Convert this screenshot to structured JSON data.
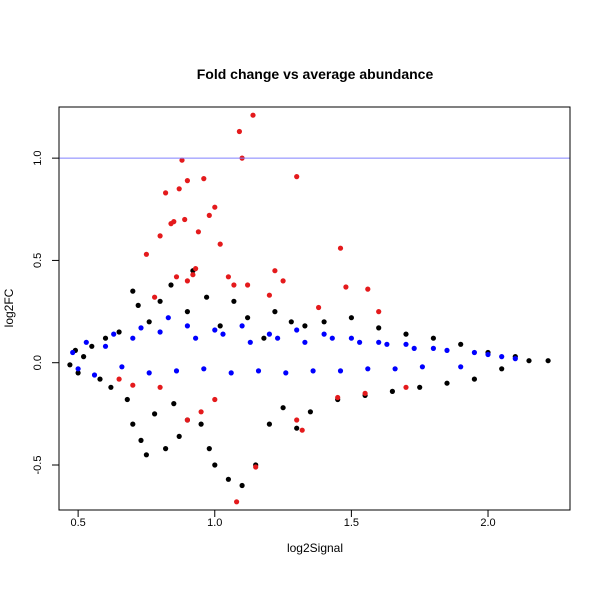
{
  "chart_data": {
    "type": "scatter",
    "title": "Fold change vs average abundance",
    "xlabel": "log2Signal",
    "ylabel": "log2FC",
    "xlim": [
      0.43,
      2.3
    ],
    "ylim": [
      -0.72,
      1.25
    ],
    "x_ticks": [
      0.5,
      1.0,
      1.5,
      2.0
    ],
    "x_tick_labels": [
      "0.5",
      "1.0",
      "1.5",
      "2.0"
    ],
    "y_ticks": [
      -0.5,
      0.0,
      0.5,
      1.0
    ],
    "y_tick_labels": [
      "-0.5",
      "0.0",
      "0.5",
      "1.0"
    ],
    "grid": false,
    "legend": "none",
    "reference_line": {
      "y": 1.0,
      "color": "#8080ff",
      "orientation": "horizontal"
    },
    "series": [
      {
        "color": "#000000",
        "points": [
          [
            0.47,
            -0.01
          ],
          [
            0.49,
            0.06
          ],
          [
            0.5,
            -0.05
          ],
          [
            0.52,
            0.03
          ],
          [
            0.55,
            0.08
          ],
          [
            0.58,
            -0.08
          ],
          [
            0.6,
            0.12
          ],
          [
            0.62,
            -0.12
          ],
          [
            0.65,
            0.15
          ],
          [
            0.68,
            -0.18
          ],
          [
            0.7,
            -0.3
          ],
          [
            0.7,
            0.35
          ],
          [
            0.72,
            0.28
          ],
          [
            0.73,
            -0.38
          ],
          [
            0.75,
            -0.45
          ],
          [
            0.76,
            0.2
          ],
          [
            0.78,
            -0.25
          ],
          [
            0.8,
            0.3
          ],
          [
            0.82,
            -0.42
          ],
          [
            0.84,
            0.38
          ],
          [
            0.85,
            -0.2
          ],
          [
            0.87,
            -0.36
          ],
          [
            0.9,
            0.25
          ],
          [
            0.9,
            -0.28
          ],
          [
            0.92,
            0.45
          ],
          [
            0.95,
            -0.3
          ],
          [
            0.97,
            0.32
          ],
          [
            0.98,
            -0.42
          ],
          [
            1.0,
            -0.5
          ],
          [
            1.02,
            0.18
          ],
          [
            1.05,
            -0.57
          ],
          [
            1.07,
            0.3
          ],
          [
            1.1,
            -0.6
          ],
          [
            1.12,
            0.22
          ],
          [
            1.15,
            -0.5
          ],
          [
            1.18,
            0.12
          ],
          [
            1.2,
            -0.3
          ],
          [
            1.22,
            0.25
          ],
          [
            1.25,
            -0.22
          ],
          [
            1.28,
            0.2
          ],
          [
            1.3,
            -0.32
          ],
          [
            1.33,
            0.18
          ],
          [
            1.35,
            -0.24
          ],
          [
            1.4,
            0.2
          ],
          [
            1.45,
            -0.18
          ],
          [
            1.5,
            0.22
          ],
          [
            1.55,
            -0.16
          ],
          [
            1.6,
            0.17
          ],
          [
            1.65,
            -0.14
          ],
          [
            1.7,
            0.14
          ],
          [
            1.75,
            -0.12
          ],
          [
            1.8,
            0.12
          ],
          [
            1.85,
            -0.1
          ],
          [
            1.9,
            0.09
          ],
          [
            1.95,
            -0.08
          ],
          [
            2.0,
            0.05
          ],
          [
            2.05,
            -0.03
          ],
          [
            2.1,
            0.03
          ],
          [
            2.15,
            0.01
          ],
          [
            2.22,
            0.01
          ]
        ]
      },
      {
        "color": "#0000ff",
        "points": [
          [
            0.48,
            0.05
          ],
          [
            0.5,
            -0.03
          ],
          [
            0.53,
            0.1
          ],
          [
            0.56,
            -0.06
          ],
          [
            0.6,
            0.08
          ],
          [
            0.63,
            0.14
          ],
          [
            0.66,
            -0.02
          ],
          [
            0.7,
            0.12
          ],
          [
            0.73,
            0.17
          ],
          [
            0.76,
            -0.05
          ],
          [
            0.8,
            0.15
          ],
          [
            0.83,
            0.22
          ],
          [
            0.86,
            -0.04
          ],
          [
            0.9,
            0.18
          ],
          [
            0.93,
            0.12
          ],
          [
            0.96,
            -0.03
          ],
          [
            1.0,
            0.16
          ],
          [
            1.03,
            0.14
          ],
          [
            1.06,
            -0.05
          ],
          [
            1.1,
            0.18
          ],
          [
            1.13,
            0.1
          ],
          [
            1.16,
            -0.04
          ],
          [
            1.2,
            0.14
          ],
          [
            1.23,
            0.12
          ],
          [
            1.26,
            -0.05
          ],
          [
            1.3,
            0.16
          ],
          [
            1.33,
            0.1
          ],
          [
            1.36,
            -0.04
          ],
          [
            1.4,
            0.14
          ],
          [
            1.43,
            0.12
          ],
          [
            1.46,
            -0.04
          ],
          [
            1.5,
            0.12
          ],
          [
            1.53,
            0.1
          ],
          [
            1.56,
            -0.03
          ],
          [
            1.6,
            0.1
          ],
          [
            1.63,
            0.09
          ],
          [
            1.66,
            -0.03
          ],
          [
            1.7,
            0.09
          ],
          [
            1.73,
            0.07
          ],
          [
            1.76,
            -0.02
          ],
          [
            1.8,
            0.07
          ],
          [
            1.85,
            0.06
          ],
          [
            1.9,
            -0.02
          ],
          [
            1.95,
            0.05
          ],
          [
            2.0,
            0.04
          ],
          [
            2.05,
            0.03
          ],
          [
            2.1,
            0.02
          ]
        ]
      },
      {
        "color": "#e41a1c",
        "points": [
          [
            0.82,
            0.83
          ],
          [
            0.84,
            0.68
          ],
          [
            0.85,
            0.69
          ],
          [
            0.87,
            0.85
          ],
          [
            0.88,
            0.99
          ],
          [
            0.89,
            0.7
          ],
          [
            0.9,
            0.89
          ],
          [
            0.92,
            0.43
          ],
          [
            0.94,
            0.64
          ],
          [
            0.96,
            0.9
          ],
          [
            0.98,
            0.72
          ],
          [
            1.0,
            0.76
          ],
          [
            1.02,
            0.58
          ],
          [
            1.05,
            0.42
          ],
          [
            1.07,
            0.38
          ],
          [
            1.09,
            1.13
          ],
          [
            1.1,
            1.0
          ],
          [
            1.14,
            1.21
          ],
          [
            1.3,
            0.91
          ],
          [
            1.46,
            0.56
          ],
          [
            1.56,
            0.36
          ],
          [
            0.75,
            0.53
          ],
          [
            0.8,
            0.62
          ],
          [
            0.78,
            0.32
          ],
          [
            0.86,
            0.42
          ],
          [
            0.9,
            0.4
          ],
          [
            0.93,
            0.46
          ],
          [
            1.12,
            0.38
          ],
          [
            1.2,
            0.33
          ],
          [
            1.22,
            0.45
          ],
          [
            1.25,
            0.4
          ],
          [
            1.38,
            0.27
          ],
          [
            1.48,
            0.37
          ],
          [
            1.6,
            0.25
          ],
          [
            0.65,
            -0.08
          ],
          [
            0.7,
            -0.11
          ],
          [
            0.8,
            -0.12
          ],
          [
            0.9,
            -0.28
          ],
          [
            0.95,
            -0.24
          ],
          [
            1.0,
            -0.18
          ],
          [
            1.08,
            -0.68
          ],
          [
            1.15,
            -0.51
          ],
          [
            1.3,
            -0.28
          ],
          [
            1.32,
            -0.33
          ],
          [
            1.45,
            -0.17
          ],
          [
            1.55,
            -0.15
          ],
          [
            1.7,
            -0.12
          ]
        ]
      }
    ]
  }
}
